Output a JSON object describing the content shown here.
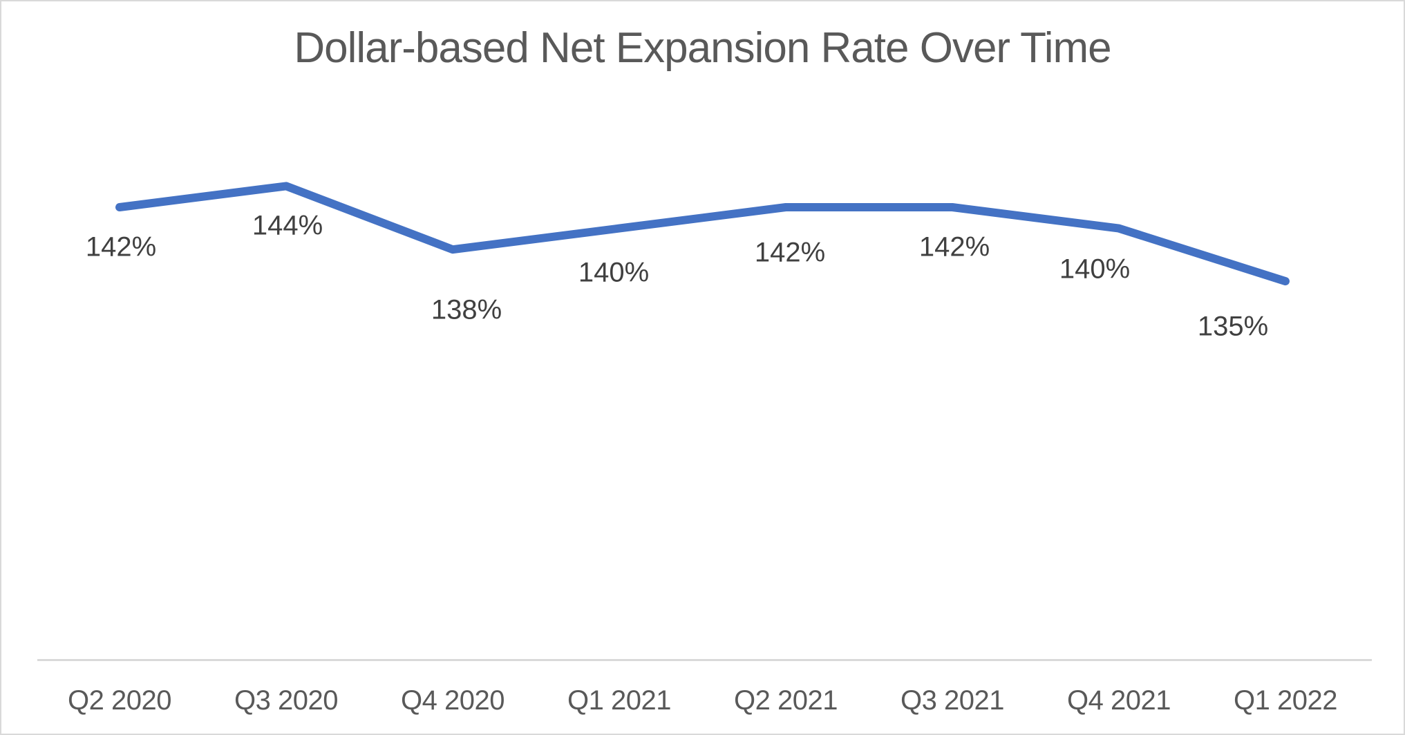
{
  "window": {
    "background": "#ffffff",
    "border_color": "#d9d9d9"
  },
  "chart_data": {
    "type": "line",
    "title": "Dollar-based Net Expansion Rate Over Time",
    "categories": [
      "Q2 2020",
      "Q3 2020",
      "Q4 2020",
      "Q1 2021",
      "Q2 2021",
      "Q3 2021",
      "Q4 2021",
      "Q1 2022"
    ],
    "values": [
      142,
      144,
      138,
      140,
      142,
      142,
      140,
      135
    ],
    "data_labels": [
      "142%",
      "144%",
      "138%",
      "140%",
      "142%",
      "142%",
      "140%",
      "135%"
    ],
    "unit": "%",
    "xlabel": "",
    "ylabel": "",
    "ylim": [
      128,
      148
    ],
    "grid": "off",
    "legend": "none",
    "y_axis_visible": false,
    "colors": {
      "line": "#4472C4",
      "data_label": "#404040",
      "axis_label": "#595959",
      "title": "#595959",
      "axis_line": "#d9d9d9"
    }
  }
}
